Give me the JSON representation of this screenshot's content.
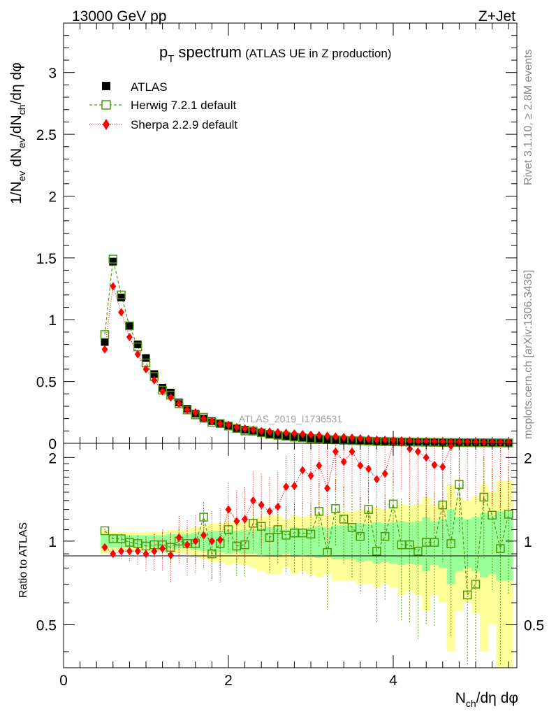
{
  "header": {
    "left": "13000 GeV pp",
    "right": "Z+Jet"
  },
  "title": {
    "main": "p",
    "sub": "T",
    "rest": " spectrum",
    "extra": "(ATLAS UE in Z production)"
  },
  "side": {
    "top": "Rivet 3.1.10, ≥ 2.8M events",
    "bottom": "mcplots.cern.ch [arXiv:1306.3436]"
  },
  "watermark": "ATLAS_2019_I1736531",
  "ylabel_main": {
    "p1": "1/N",
    "s1": "ev",
    "p2": " dN",
    "s2": "ev",
    "p3": "/dN",
    "s3": "ch",
    "p4": "/dη dφ"
  },
  "ylabel_ratio": "Ratio to ATLAS",
  "xlabel": {
    "p1": "N",
    "s1": "ch",
    "p2": "/dη dφ"
  },
  "legend": [
    {
      "label": "ATLAS",
      "color": "#000000"
    },
    {
      "label": "Herwig 7.2.1 default",
      "color": "#4a9a0a"
    },
    {
      "label": "Sherpa 2.2.9 default",
      "color": "#ff0000"
    }
  ],
  "chart_data": {
    "type": "scatter",
    "main": {
      "xlim": [
        0,
        5.5
      ],
      "ylim": [
        0,
        3.4
      ],
      "yticks": [
        0,
        0.5,
        1,
        1.5,
        2,
        2.5,
        3
      ],
      "yticklabels": [
        "0",
        "0.5",
        "1",
        "1.5",
        "2",
        "2.5",
        "3"
      ]
    },
    "ratio": {
      "xlim": [
        0,
        5.5
      ],
      "ylim": [
        0.35,
        2.25
      ],
      "yticks": [
        0.5,
        1,
        2
      ],
      "yticklabels": [
        "0.5",
        "1",
        "2"
      ]
    },
    "xticks": [
      0,
      2,
      4
    ],
    "xticklabels": [
      "0",
      "2",
      "4"
    ],
    "x": [
      0.5,
      0.6,
      0.7,
      0.8,
      0.9,
      1.0,
      1.1,
      1.2,
      1.3,
      1.4,
      1.5,
      1.6,
      1.7,
      1.8,
      1.9,
      2.0,
      2.1,
      2.2,
      2.3,
      2.4,
      2.5,
      2.6,
      2.7,
      2.8,
      2.9,
      3.0,
      3.1,
      3.2,
      3.3,
      3.4,
      3.5,
      3.6,
      3.7,
      3.8,
      3.9,
      4.0,
      4.1,
      4.2,
      4.3,
      4.4,
      4.5,
      4.6,
      4.7,
      4.8,
      4.9,
      5.0,
      5.1,
      5.2,
      5.3,
      5.4
    ],
    "series": [
      {
        "name": "ATLAS",
        "values": [
          0.82,
          1.47,
          1.18,
          0.95,
          0.8,
          0.69,
          0.56,
          0.45,
          0.41,
          0.33,
          0.28,
          0.24,
          0.2,
          0.18,
          0.16,
          0.14,
          0.12,
          0.11,
          0.095,
          0.085,
          0.075,
          0.065,
          0.058,
          0.052,
          0.046,
          0.04,
          0.036,
          0.032,
          0.028,
          0.025,
          0.022,
          0.02,
          0.018,
          0.016,
          0.014,
          0.013,
          0.012,
          0.011,
          0.01,
          0.009,
          0.008,
          0.007,
          0.0065,
          0.006,
          0.0055,
          0.005,
          0.0045,
          0.004,
          0.0035,
          0.003
        ]
      },
      {
        "name": "Herwig 7.2.1 default",
        "values": [
          0.88,
          1.49,
          1.2,
          0.95,
          0.78,
          0.65,
          0.54,
          0.43,
          0.39,
          0.32,
          0.27,
          0.23,
          0.21,
          0.17,
          0.16,
          0.14,
          0.12,
          0.1,
          0.1,
          0.085,
          0.072,
          0.065,
          0.057,
          0.05,
          0.045,
          0.038,
          0.036,
          0.03,
          0.028,
          0.025,
          0.022,
          0.02,
          0.018,
          0.015,
          0.014,
          0.013,
          0.012,
          0.011,
          0.01,
          0.009,
          0.008,
          0.007,
          0.0065,
          0.006,
          0.0055,
          0.005,
          0.0045,
          0.004,
          0.0035,
          0.003
        ],
        "ratio": [
          1.09,
          1.02,
          1.02,
          0.99,
          0.98,
          0.96,
          0.97,
          0.97,
          0.95,
          1.0,
          0.98,
          0.98,
          1.22,
          0.9,
          0.98,
          1.1,
          0.96,
          0.97,
          1.16,
          1.13,
          1.03,
          1.1,
          1.05,
          1.07,
          1.07,
          1.06,
          1.28,
          0.91,
          1.31,
          1.2,
          1.12,
          1.04,
          1.3,
          0.92,
          1.04,
          1.36,
          0.97,
          0.97,
          0.92,
          0.99,
          0.99,
          1.35,
          0.98,
          1.6,
          0.64,
          0.7,
          1.44,
          1.24,
          0.94,
          1.25
        ]
      },
      {
        "name": "Sherpa 2.2.9 default",
        "values": [
          0.76,
          1.27,
          1.06,
          0.86,
          0.72,
          0.6,
          0.51,
          0.42,
          0.37,
          0.32,
          0.27,
          0.25,
          0.2,
          0.18,
          0.16,
          0.15,
          0.13,
          0.12,
          0.11,
          0.1,
          0.095,
          0.09,
          0.085,
          0.08,
          0.075,
          0.07,
          0.065,
          0.06,
          0.055,
          0.05,
          0.045,
          0.04,
          0.036,
          0.03,
          0.028,
          0.026,
          0.024,
          0.022,
          0.02,
          0.018,
          0.016,
          0.014,
          0.013,
          0.012,
          0.011,
          0.01,
          0.009,
          0.008,
          0.0075,
          0.007
        ],
        "ratio": [
          0.95,
          0.9,
          0.92,
          0.92,
          0.92,
          0.9,
          0.92,
          0.94,
          0.89,
          1.03,
          0.97,
          1.0,
          1.05,
          1.0,
          1.01,
          1.3,
          1.18,
          1.2,
          1.4,
          1.35,
          1.28,
          1.33,
          1.57,
          1.58,
          1.8,
          1.72,
          1.87,
          1.55,
          2.1,
          1.93,
          2.1,
          1.87,
          1.82,
          1.67,
          1.75,
          2.26,
          2.26,
          2.15,
          2.1,
          2.0,
          1.88,
          1.85,
          2.2,
          2.3,
          2.3,
          2.28,
          2.3,
          2.3,
          2.3,
          2.3
        ]
      }
    ],
    "band_inner": [
      0.06,
      0.05,
      0.05,
      0.05,
      0.05,
      0.05,
      0.05,
      0.05,
      0.06,
      0.06,
      0.06,
      0.07,
      0.08,
      0.09,
      0.09,
      0.1,
      0.09,
      0.1,
      0.1,
      0.11,
      0.12,
      0.12,
      0.1,
      0.12,
      0.11,
      0.12,
      0.13,
      0.12,
      0.14,
      0.14,
      0.14,
      0.16,
      0.15,
      0.17,
      0.16,
      0.17,
      0.18,
      0.17,
      0.18,
      0.22,
      0.18,
      0.2,
      0.3,
      0.22,
      0.2,
      0.22,
      0.26,
      0.24,
      0.28,
      0.28
    ],
    "band_outer": [
      0.1,
      0.08,
      0.08,
      0.08,
      0.08,
      0.08,
      0.08,
      0.08,
      0.1,
      0.1,
      0.1,
      0.12,
      0.14,
      0.16,
      0.16,
      0.18,
      0.17,
      0.18,
      0.2,
      0.22,
      0.24,
      0.24,
      0.2,
      0.24,
      0.22,
      0.24,
      0.26,
      0.24,
      0.28,
      0.28,
      0.28,
      0.3,
      0.3,
      0.32,
      0.3,
      0.32,
      0.36,
      0.34,
      0.36,
      0.44,
      0.36,
      0.4,
      0.6,
      0.44,
      0.4,
      0.45,
      0.6,
      0.5,
      0.65,
      0.65
    ]
  }
}
